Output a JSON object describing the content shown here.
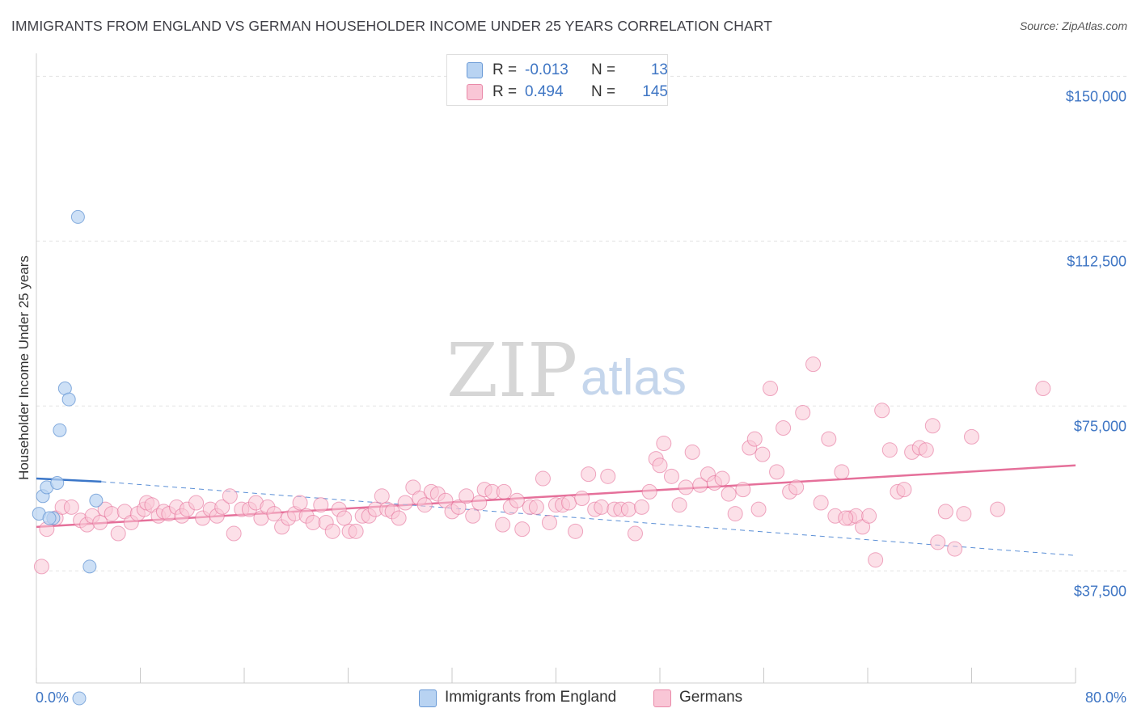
{
  "title": "IMMIGRANTS FROM ENGLAND VS GERMAN HOUSEHOLDER INCOME UNDER 25 YEARS CORRELATION CHART",
  "source": "Source: ZipAtlas.com",
  "watermark": {
    "zip": "ZIP",
    "atlas": "atlas"
  },
  "legend": {
    "rows": [
      {
        "r_label": "R =",
        "r_value": "-0.013",
        "n_label": "N =",
        "n_value": "13",
        "fill": "#b8d3f2",
        "stroke": "#6a9ad6"
      },
      {
        "r_label": "R =",
        "r_value": "0.494",
        "n_label": "N =",
        "n_value": "145",
        "fill": "#f9c6d6",
        "stroke": "#e98aa9"
      }
    ]
  },
  "bottom_legend": [
    {
      "label": "Immigrants from England",
      "fill": "#b8d3f2",
      "stroke": "#6a9ad6"
    },
    {
      "label": "Germans",
      "fill": "#f9c6d6",
      "stroke": "#e98aa9"
    }
  ],
  "chart_data": {
    "type": "scatter",
    "title": "IMMIGRANTS FROM ENGLAND VS GERMAN HOUSEHOLDER INCOME UNDER 25 YEARS CORRELATION CHART",
    "xlabel": "",
    "ylabel": "Householder Income Under 25 years",
    "xlim": [
      0,
      80
    ],
    "ylim": [
      12000,
      153000
    ],
    "x_tick_labels": [
      "0.0%",
      "80.0%"
    ],
    "y_ticks": [
      37500,
      75000,
      112500,
      150000
    ],
    "y_tick_labels": [
      "$37,500",
      "$75,000",
      "$112,500",
      "$150,000"
    ],
    "grid": true,
    "legend_position": "top-center",
    "series": [
      {
        "name": "Immigrants from England",
        "color": "#6a9ad6",
        "fill": "#b8d3f2",
        "points": [
          [
            0.2,
            50500
          ],
          [
            0.5,
            54500
          ],
          [
            0.8,
            56500
          ],
          [
            1.3,
            49500
          ],
          [
            1.6,
            57500
          ],
          [
            1.8,
            69500
          ],
          [
            2.2,
            79000
          ],
          [
            2.5,
            76500
          ],
          [
            3.2,
            118000
          ],
          [
            3.3,
            8500
          ],
          [
            4.1,
            38500
          ],
          [
            4.6,
            53500
          ],
          [
            1.0,
            49500
          ]
        ],
        "trend_solid": [
          [
            0,
            58500
          ],
          [
            5,
            57800
          ]
        ],
        "trend_dashed": [
          [
            5,
            57800
          ],
          [
            80,
            41000
          ]
        ]
      },
      {
        "name": "Germans",
        "color": "#e5709a",
        "fill": "#f9c6d6",
        "points": [
          [
            0.4,
            38500
          ],
          [
            0.8,
            47000
          ],
          [
            1.5,
            49500
          ],
          [
            2.0,
            52000
          ],
          [
            2.7,
            52000
          ],
          [
            3.4,
            49000
          ],
          [
            3.9,
            48000
          ],
          [
            4.3,
            50000
          ],
          [
            4.9,
            48500
          ],
          [
            5.3,
            51500
          ],
          [
            5.8,
            50500
          ],
          [
            6.3,
            46000
          ],
          [
            6.8,
            51000
          ],
          [
            7.3,
            48500
          ],
          [
            7.8,
            50500
          ],
          [
            8.3,
            51500
          ],
          [
            8.5,
            53000
          ],
          [
            8.9,
            52500
          ],
          [
            9.4,
            50000
          ],
          [
            9.8,
            51000
          ],
          [
            10.2,
            50500
          ],
          [
            10.8,
            52000
          ],
          [
            11.2,
            50000
          ],
          [
            11.6,
            51500
          ],
          [
            12.3,
            53000
          ],
          [
            12.8,
            49500
          ],
          [
            13.4,
            51500
          ],
          [
            13.9,
            50000
          ],
          [
            14.3,
            52000
          ],
          [
            14.9,
            54500
          ],
          [
            15.2,
            46000
          ],
          [
            15.8,
            51500
          ],
          [
            16.4,
            51500
          ],
          [
            16.9,
            53000
          ],
          [
            17.3,
            49500
          ],
          [
            17.8,
            52000
          ],
          [
            18.3,
            50500
          ],
          [
            18.9,
            47500
          ],
          [
            19.4,
            49500
          ],
          [
            19.9,
            50500
          ],
          [
            20.3,
            53000
          ],
          [
            20.8,
            50000
          ],
          [
            21.3,
            48500
          ],
          [
            21.9,
            52500
          ],
          [
            22.3,
            48500
          ],
          [
            22.8,
            46500
          ],
          [
            23.3,
            51500
          ],
          [
            23.7,
            49500
          ],
          [
            24.1,
            46500
          ],
          [
            24.6,
            46500
          ],
          [
            25.1,
            50000
          ],
          [
            25.6,
            50000
          ],
          [
            26.1,
            51500
          ],
          [
            26.6,
            54500
          ],
          [
            27.0,
            51500
          ],
          [
            27.4,
            51000
          ],
          [
            27.9,
            49500
          ],
          [
            28.4,
            53000
          ],
          [
            29.0,
            56500
          ],
          [
            29.5,
            54000
          ],
          [
            29.9,
            52500
          ],
          [
            30.4,
            55500
          ],
          [
            30.9,
            55000
          ],
          [
            31.5,
            53500
          ],
          [
            32.0,
            51000
          ],
          [
            32.5,
            52000
          ],
          [
            33.1,
            54500
          ],
          [
            33.6,
            50000
          ],
          [
            34.1,
            53000
          ],
          [
            34.5,
            56000
          ],
          [
            35.1,
            55500
          ],
          [
            35.9,
            48000
          ],
          [
            36.5,
            52000
          ],
          [
            37.0,
            53500
          ],
          [
            37.4,
            47000
          ],
          [
            38.0,
            52000
          ],
          [
            38.5,
            52000
          ],
          [
            39.0,
            58500
          ],
          [
            39.5,
            48500
          ],
          [
            40.0,
            52500
          ],
          [
            40.5,
            52500
          ],
          [
            41.0,
            53000
          ],
          [
            41.5,
            46500
          ],
          [
            42.0,
            54000
          ],
          [
            42.5,
            59500
          ],
          [
            43.0,
            51500
          ],
          [
            43.5,
            52000
          ],
          [
            44.0,
            59000
          ],
          [
            44.5,
            51500
          ],
          [
            45.0,
            51500
          ],
          [
            45.6,
            51500
          ],
          [
            46.1,
            46000
          ],
          [
            46.6,
            52000
          ],
          [
            47.2,
            55500
          ],
          [
            47.7,
            63000
          ],
          [
            48.3,
            66500
          ],
          [
            48.9,
            59000
          ],
          [
            49.5,
            52500
          ],
          [
            50.0,
            56500
          ],
          [
            50.5,
            64500
          ],
          [
            51.1,
            57000
          ],
          [
            51.7,
            59500
          ],
          [
            52.2,
            57500
          ],
          [
            52.8,
            58500
          ],
          [
            53.3,
            55000
          ],
          [
            53.8,
            50500
          ],
          [
            54.4,
            56000
          ],
          [
            54.9,
            65500
          ],
          [
            55.3,
            67500
          ],
          [
            55.9,
            64000
          ],
          [
            56.5,
            79000
          ],
          [
            57.0,
            60000
          ],
          [
            57.5,
            70000
          ],
          [
            58.0,
            55500
          ],
          [
            58.5,
            56500
          ],
          [
            59.0,
            73500
          ],
          [
            59.8,
            84500
          ],
          [
            60.4,
            53000
          ],
          [
            61.0,
            67500
          ],
          [
            61.5,
            50000
          ],
          [
            62.0,
            60000
          ],
          [
            62.6,
            49500
          ],
          [
            63.1,
            50000
          ],
          [
            63.6,
            47500
          ],
          [
            64.1,
            50000
          ],
          [
            64.6,
            40000
          ],
          [
            65.1,
            74000
          ],
          [
            65.7,
            65000
          ],
          [
            66.3,
            55500
          ],
          [
            66.8,
            56000
          ],
          [
            67.4,
            64500
          ],
          [
            68.0,
            65500
          ],
          [
            68.5,
            65000
          ],
          [
            69.0,
            70500
          ],
          [
            69.4,
            44000
          ],
          [
            70.0,
            51000
          ],
          [
            70.7,
            42500
          ],
          [
            71.4,
            50500
          ],
          [
            72.0,
            68000
          ],
          [
            74.0,
            51500
          ],
          [
            77.5,
            79000
          ],
          [
            62.3,
            49500
          ],
          [
            55.6,
            51500
          ],
          [
            48.0,
            61500
          ],
          [
            36.0,
            55500
          ]
        ],
        "trend": [
          [
            0,
            47500
          ],
          [
            80,
            61500
          ]
        ]
      }
    ]
  }
}
